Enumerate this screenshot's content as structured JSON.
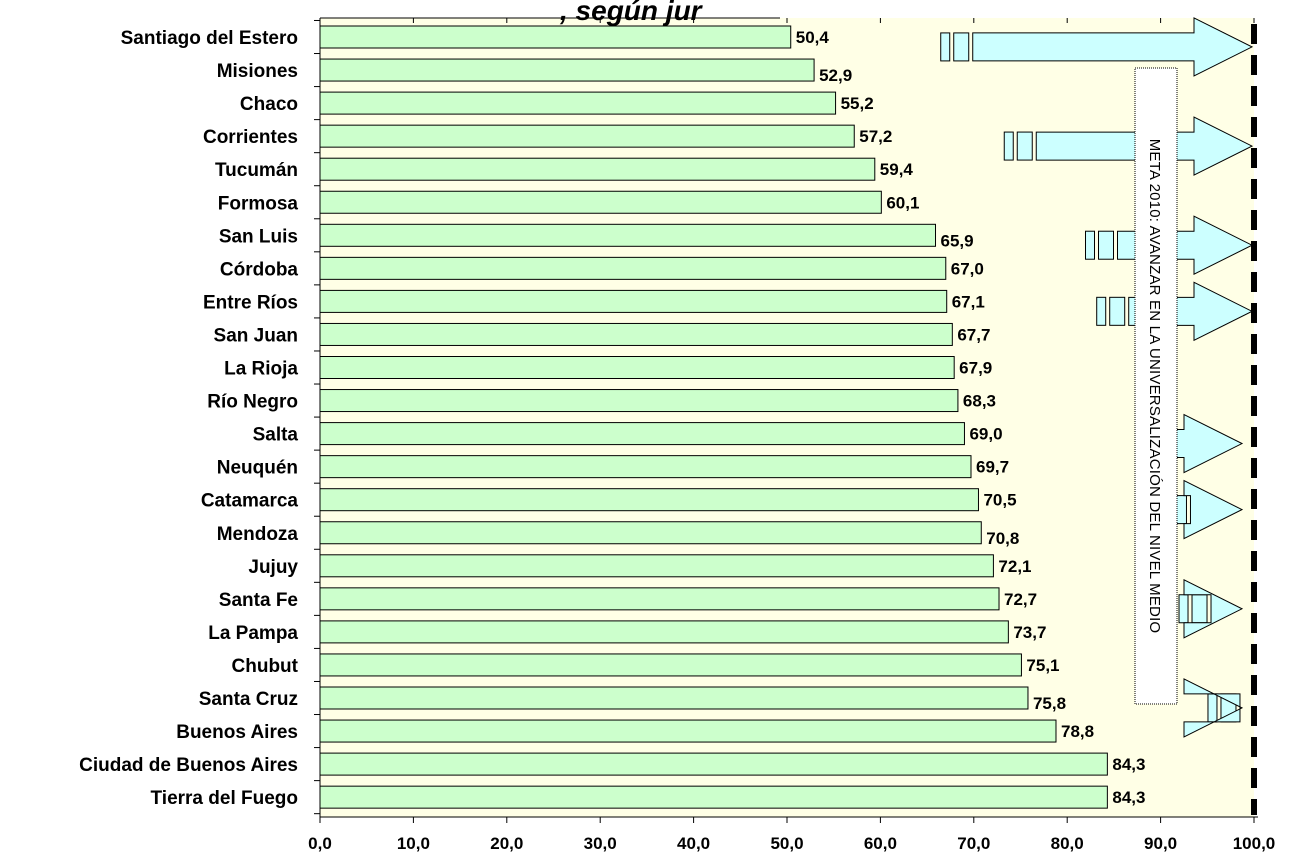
{
  "title_fragment": ", según jur",
  "chart_data": {
    "type": "bar",
    "orientation": "horizontal",
    "categories": [
      "Santiago del Estero",
      "Misiones",
      "Chaco",
      "Corrientes",
      "Tucumán",
      "Formosa",
      "San Luis",
      "Córdoba",
      "Entre Ríos",
      "San Juan",
      "La Rioja",
      "Río Negro",
      "Salta",
      "Neuquén",
      "Catamarca",
      "Mendoza",
      "Jujuy",
      "Santa Fe",
      "La Pampa",
      "Chubut",
      "Santa Cruz",
      "Buenos Aires",
      "Ciudad de Buenos Aires",
      "Tierra del Fuego"
    ],
    "values": [
      50.4,
      52.9,
      55.2,
      57.2,
      59.4,
      60.1,
      65.9,
      67.0,
      67.1,
      67.7,
      67.9,
      68.3,
      69.0,
      69.7,
      70.5,
      70.8,
      72.1,
      72.7,
      73.7,
      75.1,
      75.8,
      78.8,
      84.3,
      84.3
    ],
    "value_labels": [
      "50,4",
      "52,9",
      "55,2",
      "57,2",
      "59,4",
      "60,1",
      "65,9",
      "67,0",
      "67,1",
      "67,7",
      "67,9",
      "68,3",
      "69,0",
      "69,7",
      "70,5",
      "70,8",
      "72,1",
      "72,7",
      "73,7",
      "75,1",
      "75,8",
      "78,8",
      "84,3",
      "84,3"
    ],
    "xlim": [
      0,
      100
    ],
    "x_ticks": [
      "0,0",
      "10,0",
      "20,0",
      "30,0",
      "40,0",
      "50,0",
      "60,0",
      "70,0",
      "80,0",
      "90,0",
      "100,0"
    ],
    "target_value": 100,
    "annotation": "META 2010: AVANZAR EN LA UNIVERSALIZACIÓN DEL NIVEL MEDIO",
    "grid": false,
    "colors": {
      "bar_fill": "#ccffcc",
      "bar_stroke": "#000000",
      "plot_background": "#ffffe6",
      "arrow_fill": "#ccffff",
      "target_line": "#000000"
    }
  }
}
